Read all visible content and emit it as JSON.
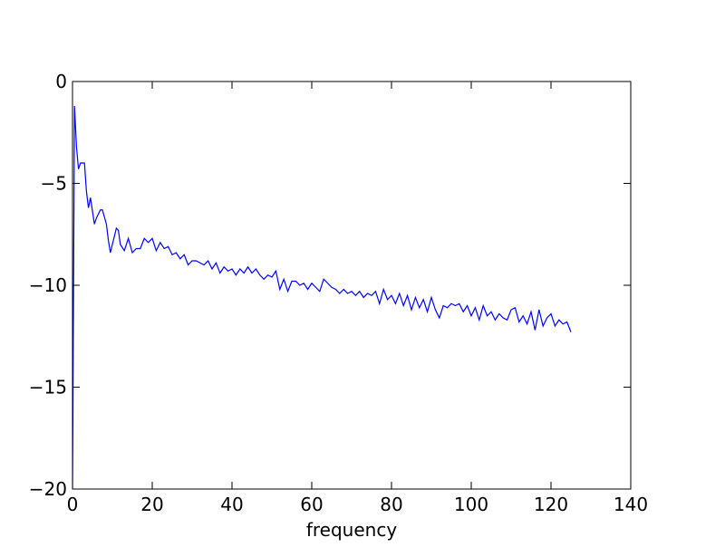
{
  "chart_data": {
    "type": "line",
    "xlabel": "frequency",
    "xlim": [
      0,
      140
    ],
    "xticks": [
      0,
      20,
      40,
      60,
      80,
      100,
      120,
      140
    ],
    "ylim": [
      -20,
      0
    ],
    "yticks": [
      {
        "value": -20,
        "label": "−20"
      },
      {
        "value": -15,
        "label": "−15"
      },
      {
        "value": -10,
        "label": "−10"
      },
      {
        "value": -5,
        "label": "−5"
      },
      0
    ],
    "series": [
      {
        "color": "#0000ff",
        "x": [
          0,
          0.5,
          1,
          1.5,
          2,
          3,
          3.5,
          4,
          4.5,
          5.5,
          6,
          7,
          7.5,
          8.5,
          9,
          9.5,
          10.5,
          11,
          11.5,
          12,
          13,
          14,
          15,
          16,
          17,
          18,
          19,
          20,
          21,
          22,
          23,
          24,
          25,
          26,
          27,
          28,
          29,
          30,
          31,
          32,
          33,
          34,
          35,
          36,
          37,
          38,
          39,
          40,
          41,
          42,
          43,
          44,
          45,
          46,
          47,
          48,
          49,
          50,
          51,
          52,
          53,
          54,
          55,
          56,
          57,
          58,
          59,
          60,
          61,
          62,
          63,
          64,
          65,
          66,
          67,
          68,
          69,
          70,
          71,
          72,
          73,
          74,
          75,
          76,
          77,
          78,
          79,
          80,
          81,
          82,
          83,
          84,
          85,
          86,
          87,
          88,
          89,
          90,
          91,
          92,
          93,
          94,
          95,
          96,
          97,
          98,
          99,
          100,
          101,
          102,
          103,
          104,
          105,
          106,
          107,
          108,
          109,
          110,
          111,
          112,
          113,
          114,
          115,
          116,
          117,
          118,
          119,
          120,
          121,
          122,
          123,
          124,
          125
        ],
        "values": [
          -20,
          -1.2,
          -3.2,
          -4.3,
          -4.0,
          -4.0,
          -5.4,
          -6.2,
          -5.7,
          -7.0,
          -6.7,
          -6.3,
          -6.3,
          -7.0,
          -7.8,
          -8.4,
          -7.6,
          -7.2,
          -7.3,
          -8.0,
          -8.3,
          -7.7,
          -8.4,
          -8.2,
          -8.2,
          -7.7,
          -7.9,
          -7.7,
          -8.3,
          -7.9,
          -8.2,
          -8.1,
          -8.5,
          -8.4,
          -8.7,
          -8.5,
          -9.0,
          -8.8,
          -8.8,
          -8.9,
          -9.0,
          -8.8,
          -9.2,
          -8.9,
          -9.4,
          -9.1,
          -9.3,
          -9.2,
          -9.5,
          -9.2,
          -9.4,
          -9.1,
          -9.4,
          -9.2,
          -9.5,
          -9.7,
          -9.5,
          -9.6,
          -9.3,
          -10.2,
          -9.7,
          -10.3,
          -9.8,
          -9.8,
          -10.0,
          -9.9,
          -10.2,
          -9.9,
          -10.1,
          -10.3,
          -9.7,
          -9.9,
          -10.1,
          -10.2,
          -10.4,
          -10.2,
          -10.4,
          -10.3,
          -10.5,
          -10.3,
          -10.6,
          -10.4,
          -10.5,
          -10.3,
          -10.9,
          -10.2,
          -10.7,
          -10.5,
          -10.9,
          -10.4,
          -11.0,
          -10.5,
          -11.2,
          -10.6,
          -11.1,
          -10.7,
          -11.3,
          -10.6,
          -11.2,
          -11.6,
          -11.0,
          -11.1,
          -10.9,
          -11.0,
          -10.9,
          -11.3,
          -11.0,
          -11.5,
          -11.1,
          -11.7,
          -11.0,
          -11.5,
          -11.3,
          -11.7,
          -11.4,
          -11.6,
          -11.7,
          -11.2,
          -11.1,
          -11.8,
          -11.5,
          -11.9,
          -11.3,
          -12.2,
          -11.2,
          -12.0,
          -11.6,
          -11.4,
          -12.0,
          -11.7,
          -11.9,
          -11.8,
          -12.3
        ]
      }
    ]
  }
}
